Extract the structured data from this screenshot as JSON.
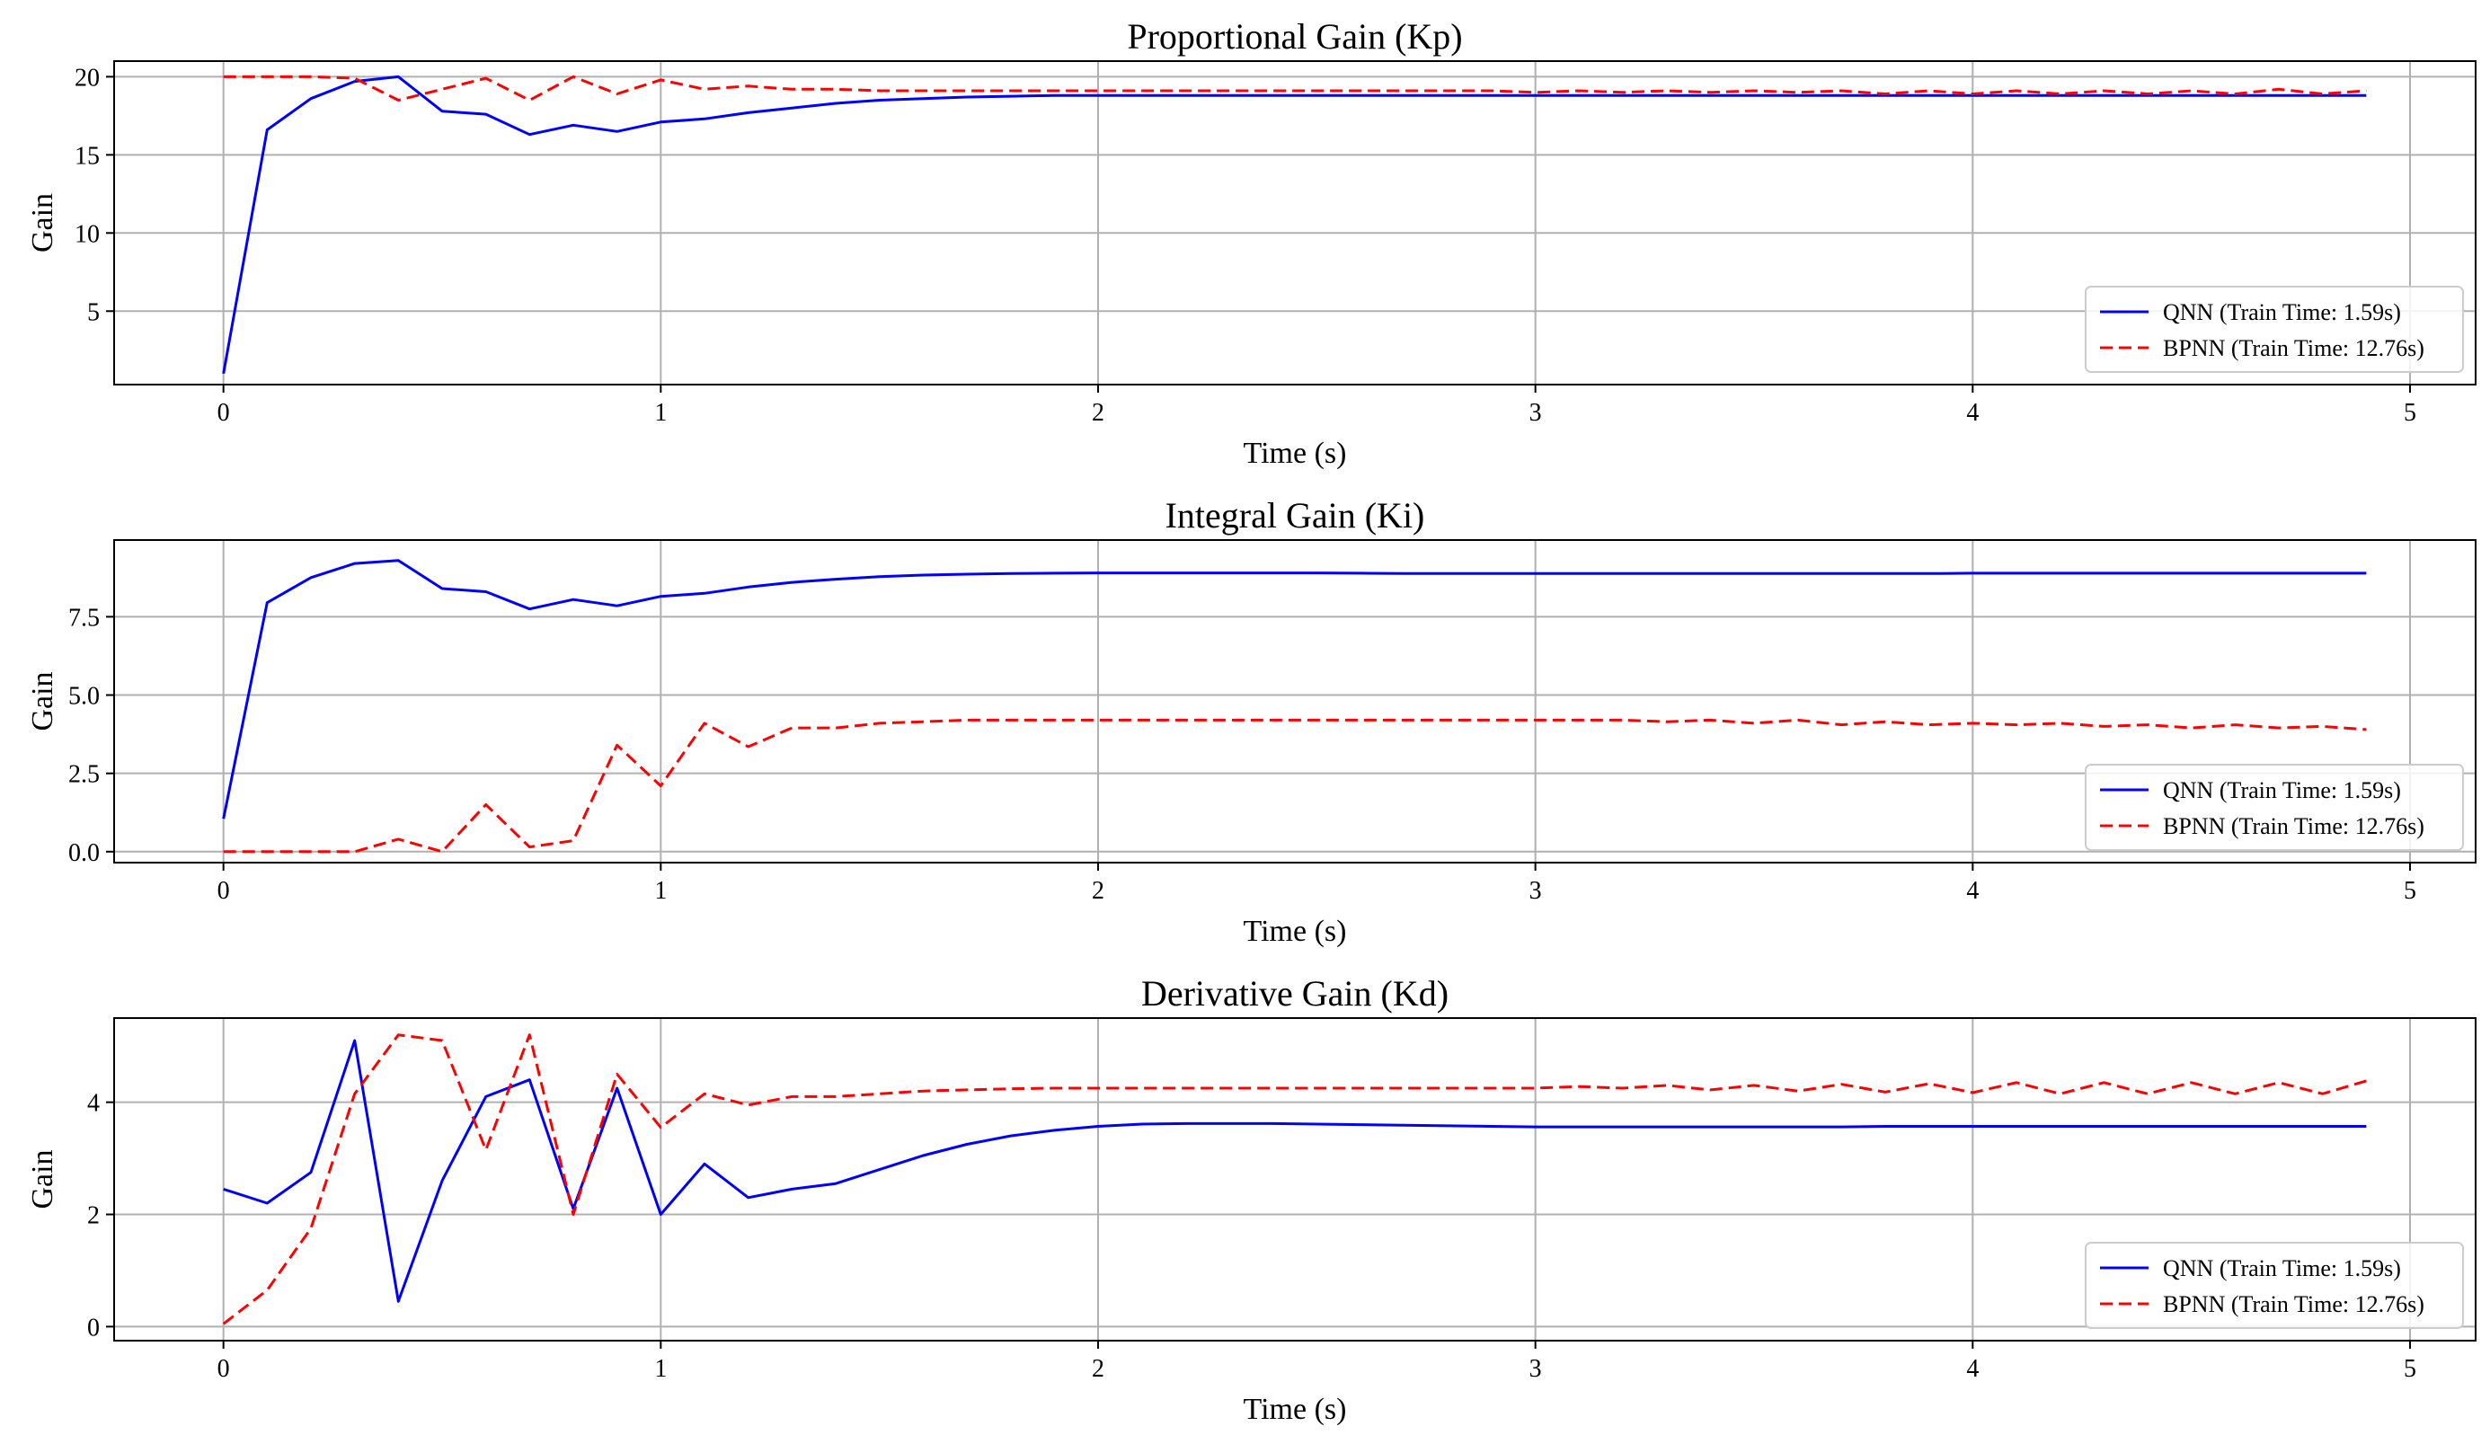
{
  "chart_data": [
    {
      "type": "line",
      "title": "Proportional Gain (Kp)",
      "xlabel": "Time (s)",
      "ylabel": "Gain",
      "xlim": [
        -0.25,
        5.15
      ],
      "ylim": [
        0.3,
        21.0
      ],
      "xticks": [
        0,
        1,
        2,
        3,
        4,
        5
      ],
      "xtick_labels": [
        "0",
        "1",
        "2",
        "3",
        "4",
        "5"
      ],
      "yticks": [
        5,
        10,
        15,
        20
      ],
      "ytick_labels": [
        "5",
        "10",
        "15",
        "20"
      ],
      "grid": true,
      "legend": "lower-right",
      "x": [
        0,
        0.1,
        0.2,
        0.3,
        0.4,
        0.5,
        0.6,
        0.7,
        0.8,
        0.9,
        1.0,
        1.1,
        1.2,
        1.3,
        1.4,
        1.5,
        1.6,
        1.7,
        1.8,
        1.9,
        2.0,
        2.1,
        2.2,
        2.3,
        2.4,
        2.5,
        2.6,
        2.7,
        2.8,
        2.9,
        3.0,
        3.1,
        3.2,
        3.3,
        3.4,
        3.5,
        3.6,
        3.7,
        3.8,
        3.9,
        4.0,
        4.1,
        4.2,
        4.3,
        4.4,
        4.5,
        4.6,
        4.7,
        4.8,
        4.9
      ],
      "series": [
        {
          "name": "QNN (Train Time: 1.59s)",
          "color": "#0000ff",
          "style": "solid",
          "values": [
            1.0,
            16.6,
            18.6,
            19.7,
            20.0,
            17.8,
            17.6,
            16.3,
            16.9,
            16.5,
            17.1,
            17.3,
            17.7,
            18.0,
            18.3,
            18.5,
            18.6,
            18.7,
            18.75,
            18.8,
            18.8,
            18.8,
            18.8,
            18.8,
            18.8,
            18.8,
            18.8,
            18.8,
            18.8,
            18.8,
            18.8,
            18.8,
            18.8,
            18.8,
            18.8,
            18.8,
            18.8,
            18.8,
            18.8,
            18.8,
            18.8,
            18.8,
            18.8,
            18.8,
            18.8,
            18.8,
            18.8,
            18.8,
            18.8,
            18.8
          ]
        },
        {
          "name": "BPNN (Train Time: 12.76s)",
          "color": "#ff0000",
          "style": "dashed",
          "values": [
            20.0,
            20.0,
            20.0,
            19.9,
            18.5,
            19.2,
            19.9,
            18.5,
            20.0,
            18.9,
            19.8,
            19.2,
            19.4,
            19.2,
            19.2,
            19.1,
            19.1,
            19.1,
            19.1,
            19.1,
            19.1,
            19.1,
            19.1,
            19.1,
            19.1,
            19.1,
            19.1,
            19.1,
            19.1,
            19.1,
            19.0,
            19.1,
            19.0,
            19.1,
            19.0,
            19.1,
            19.0,
            19.1,
            18.9,
            19.1,
            18.9,
            19.1,
            18.9,
            19.1,
            18.9,
            19.1,
            18.9,
            19.2,
            18.9,
            19.1
          ]
        }
      ]
    },
    {
      "type": "line",
      "title": "Integral Gain (Ki)",
      "xlabel": "Time (s)",
      "ylabel": "Gain",
      "xlim": [
        -0.25,
        5.15
      ],
      "ylim": [
        -0.35,
        9.95
      ],
      "xticks": [
        0,
        1,
        2,
        3,
        4,
        5
      ],
      "xtick_labels": [
        "0",
        "1",
        "2",
        "3",
        "4",
        "5"
      ],
      "yticks": [
        0.0,
        2.5,
        5.0,
        7.5
      ],
      "ytick_labels": [
        "0.0",
        "2.5",
        "5.0",
        "7.5"
      ],
      "grid": true,
      "legend": "lower-right",
      "x": [
        0,
        0.1,
        0.2,
        0.3,
        0.4,
        0.5,
        0.6,
        0.7,
        0.8,
        0.9,
        1.0,
        1.1,
        1.2,
        1.3,
        1.4,
        1.5,
        1.6,
        1.7,
        1.8,
        1.9,
        2.0,
        2.1,
        2.2,
        2.3,
        2.4,
        2.5,
        2.6,
        2.7,
        2.8,
        2.9,
        3.0,
        3.1,
        3.2,
        3.3,
        3.4,
        3.5,
        3.6,
        3.7,
        3.8,
        3.9,
        4.0,
        4.1,
        4.2,
        4.3,
        4.4,
        4.5,
        4.6,
        4.7,
        4.8,
        4.9
      ],
      "series": [
        {
          "name": "QNN (Train Time: 1.59s)",
          "color": "#0000ff",
          "style": "solid",
          "values": [
            1.05,
            7.95,
            8.75,
            9.2,
            9.3,
            8.4,
            8.3,
            7.75,
            8.05,
            7.85,
            8.15,
            8.25,
            8.45,
            8.6,
            8.7,
            8.78,
            8.83,
            8.86,
            8.88,
            8.89,
            8.9,
            8.9,
            8.9,
            8.9,
            8.9,
            8.9,
            8.89,
            8.88,
            8.88,
            8.88,
            8.88,
            8.88,
            8.88,
            8.88,
            8.88,
            8.88,
            8.88,
            8.88,
            8.88,
            8.88,
            8.89,
            8.89,
            8.89,
            8.89,
            8.89,
            8.89,
            8.89,
            8.89,
            8.89,
            8.89
          ]
        },
        {
          "name": "BPNN (Train Time: 12.76s)",
          "color": "#ff0000",
          "style": "dashed",
          "values": [
            0.0,
            0.0,
            0.0,
            0.0,
            0.4,
            0.0,
            1.5,
            0.15,
            0.35,
            3.4,
            2.1,
            4.1,
            3.35,
            3.95,
            3.95,
            4.1,
            4.15,
            4.2,
            4.2,
            4.2,
            4.2,
            4.2,
            4.2,
            4.2,
            4.2,
            4.2,
            4.2,
            4.2,
            4.2,
            4.2,
            4.2,
            4.2,
            4.2,
            4.15,
            4.2,
            4.1,
            4.2,
            4.05,
            4.15,
            4.05,
            4.1,
            4.05,
            4.1,
            4.0,
            4.05,
            3.95,
            4.05,
            3.95,
            4.0,
            3.9
          ]
        }
      ]
    },
    {
      "type": "line",
      "title": "Derivative Gain (Kd)",
      "xlabel": "Time (s)",
      "ylabel": "Gain",
      "xlim": [
        -0.25,
        5.15
      ],
      "ylim": [
        -0.25,
        5.5
      ],
      "xticks": [
        0,
        1,
        2,
        3,
        4,
        5
      ],
      "xtick_labels": [
        "0",
        "1",
        "2",
        "3",
        "4",
        "5"
      ],
      "yticks": [
        0,
        2,
        4
      ],
      "ytick_labels": [
        "0",
        "2",
        "4"
      ],
      "grid": true,
      "legend": "lower-right",
      "x": [
        0,
        0.1,
        0.2,
        0.3,
        0.4,
        0.5,
        0.6,
        0.7,
        0.8,
        0.9,
        1.0,
        1.1,
        1.2,
        1.3,
        1.4,
        1.5,
        1.6,
        1.7,
        1.8,
        1.9,
        2.0,
        2.1,
        2.2,
        2.3,
        2.4,
        2.5,
        2.6,
        2.7,
        2.8,
        2.9,
        3.0,
        3.1,
        3.2,
        3.3,
        3.4,
        3.5,
        3.6,
        3.7,
        3.8,
        3.9,
        4.0,
        4.1,
        4.2,
        4.3,
        4.4,
        4.5,
        4.6,
        4.7,
        4.8,
        4.9
      ],
      "series": [
        {
          "name": "QNN (Train Time: 1.59s)",
          "color": "#0000ff",
          "style": "solid",
          "values": [
            2.45,
            2.2,
            2.75,
            5.1,
            0.45,
            2.6,
            4.1,
            4.4,
            2.1,
            4.25,
            2.0,
            2.9,
            2.3,
            2.45,
            2.55,
            2.8,
            3.05,
            3.25,
            3.4,
            3.5,
            3.57,
            3.61,
            3.62,
            3.62,
            3.62,
            3.61,
            3.6,
            3.59,
            3.58,
            3.57,
            3.56,
            3.56,
            3.56,
            3.56,
            3.56,
            3.56,
            3.56,
            3.56,
            3.57,
            3.57,
            3.57,
            3.57,
            3.57,
            3.57,
            3.57,
            3.57,
            3.57,
            3.57,
            3.57,
            3.57
          ]
        },
        {
          "name": "BPNN (Train Time: 12.76s)",
          "color": "#ff0000",
          "style": "dashed",
          "values": [
            0.05,
            0.65,
            1.75,
            4.15,
            5.2,
            5.1,
            3.15,
            5.2,
            2.0,
            4.5,
            3.55,
            4.15,
            3.95,
            4.1,
            4.1,
            4.15,
            4.2,
            4.22,
            4.24,
            4.25,
            4.25,
            4.25,
            4.25,
            4.25,
            4.25,
            4.25,
            4.25,
            4.25,
            4.25,
            4.25,
            4.25,
            4.28,
            4.25,
            4.3,
            4.22,
            4.3,
            4.2,
            4.32,
            4.18,
            4.33,
            4.17,
            4.35,
            4.15,
            4.35,
            4.15,
            4.35,
            4.15,
            4.35,
            4.15,
            4.38
          ]
        }
      ]
    }
  ]
}
